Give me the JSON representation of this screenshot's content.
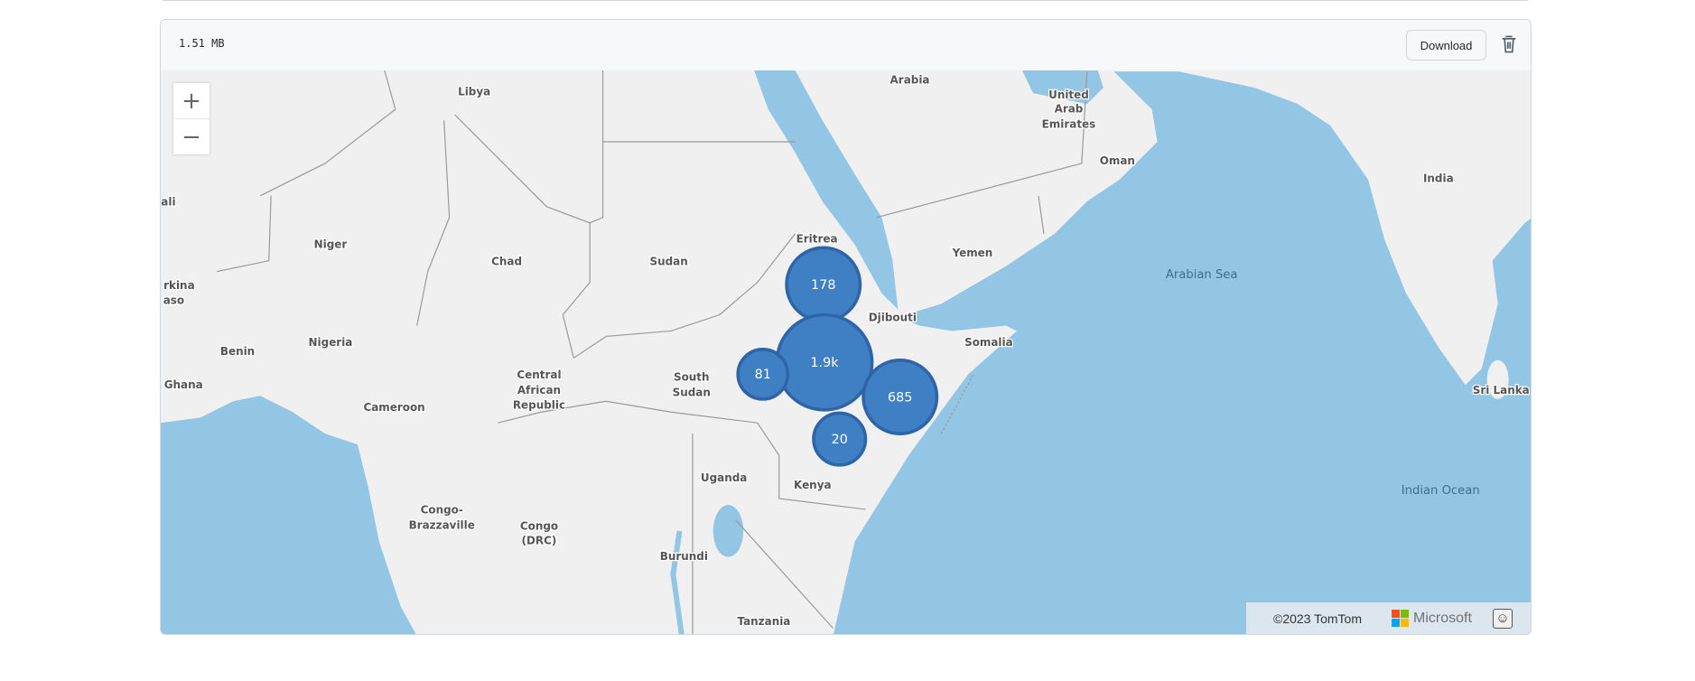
{
  "file": {
    "size": "1.51 MB",
    "download_label": "Download",
    "delete_icon": "trash-icon"
  },
  "map": {
    "zoom_in": "+",
    "zoom_out": "−",
    "colors": {
      "land": "#f0f0f0",
      "water": "#92c6e4",
      "bubble": "#3f7fc3",
      "bubble_stroke": "#2f65a8"
    },
    "labels": {
      "libya": "Libya",
      "arabia": "Arabia",
      "uae1": "United",
      "uae2": "Arab",
      "uae3": "Emirates",
      "oman": "Oman",
      "india": "India",
      "mali": "ali",
      "niger": "Niger",
      "chad": "Chad",
      "sudan": "Sudan",
      "eritrea": "Eritrea",
      "yemen": "Yemen",
      "burkina1": "rkina",
      "burkina2": "aso",
      "djibouti": "Djibouti",
      "somalia": "Somalia",
      "benin": "Benin",
      "nigeria": "Nigeria",
      "ghana": "Ghana",
      "car1": "Central",
      "car2": "African",
      "car3": "Republic",
      "ss1": "South",
      "ss2": "Sudan",
      "cameroon": "Cameroon",
      "srilanka": "Sri Lanka",
      "uganda": "Uganda",
      "kenya": "Kenya",
      "congo1": "Congo-",
      "congo2": "Brazzaville",
      "drc1": "Congo",
      "drc2": "(DRC)",
      "burundi": "Burundi",
      "tanzania": "Tanzania",
      "arabian_sea": "Arabian Sea",
      "indian_ocean": "Indian Ocean"
    },
    "clusters": [
      {
        "label": "178",
        "count": 178
      },
      {
        "label": "1.9k",
        "count": 1900
      },
      {
        "label": "81",
        "count": 81
      },
      {
        "label": "685",
        "count": 685
      },
      {
        "label": "20",
        "count": 20
      }
    ],
    "attribution": {
      "copyright": "©2023 TomTom",
      "brand": "Microsoft",
      "feedback_icon": "smiley-icon"
    }
  }
}
